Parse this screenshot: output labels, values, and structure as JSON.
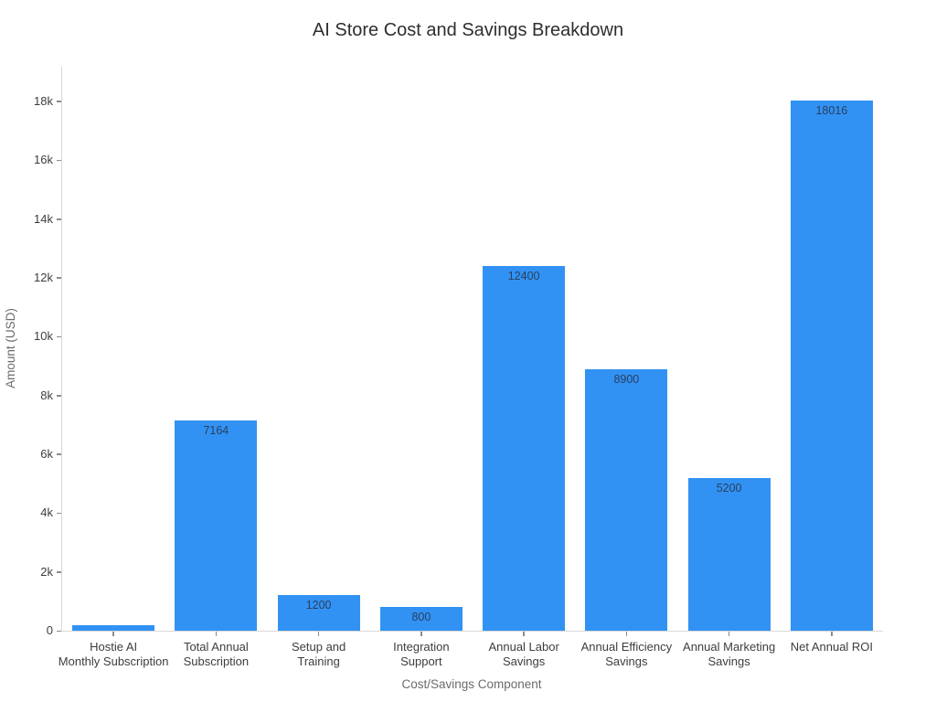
{
  "chart_data": {
    "type": "bar",
    "title": "AI Store Cost and Savings Breakdown",
    "xlabel": "Cost/Savings Component",
    "ylabel": "Amount (USD)",
    "categories": [
      "Hostie AI\nMonthly Subscription",
      "Total Annual\nSubscription",
      "Setup and\nTraining",
      "Integration\nSupport",
      "Annual Labor\nSavings",
      "Annual Efficiency\nSavings",
      "Annual Marketing\nSavings",
      "Net Annual ROI"
    ],
    "values": [
      199,
      7164,
      1200,
      800,
      12400,
      8900,
      5200,
      18016
    ],
    "bar_labels": [
      "",
      "7164",
      "1200",
      "800",
      "12400",
      "8900",
      "5200",
      "18016"
    ],
    "ylim": [
      0,
      19180
    ],
    "yticks": {
      "values": [
        0,
        2000,
        4000,
        6000,
        8000,
        10000,
        12000,
        14000,
        16000,
        18000
      ],
      "labels": [
        "0",
        "2k",
        "4k",
        "6k",
        "8k",
        "10k",
        "12k",
        "14k",
        "16k",
        "18k"
      ]
    },
    "grid": false,
    "legend": "none",
    "bar_color": "#3192f3",
    "bar_label_color": "#2a3f5f",
    "axis_line_color": "#d9d9d9"
  }
}
